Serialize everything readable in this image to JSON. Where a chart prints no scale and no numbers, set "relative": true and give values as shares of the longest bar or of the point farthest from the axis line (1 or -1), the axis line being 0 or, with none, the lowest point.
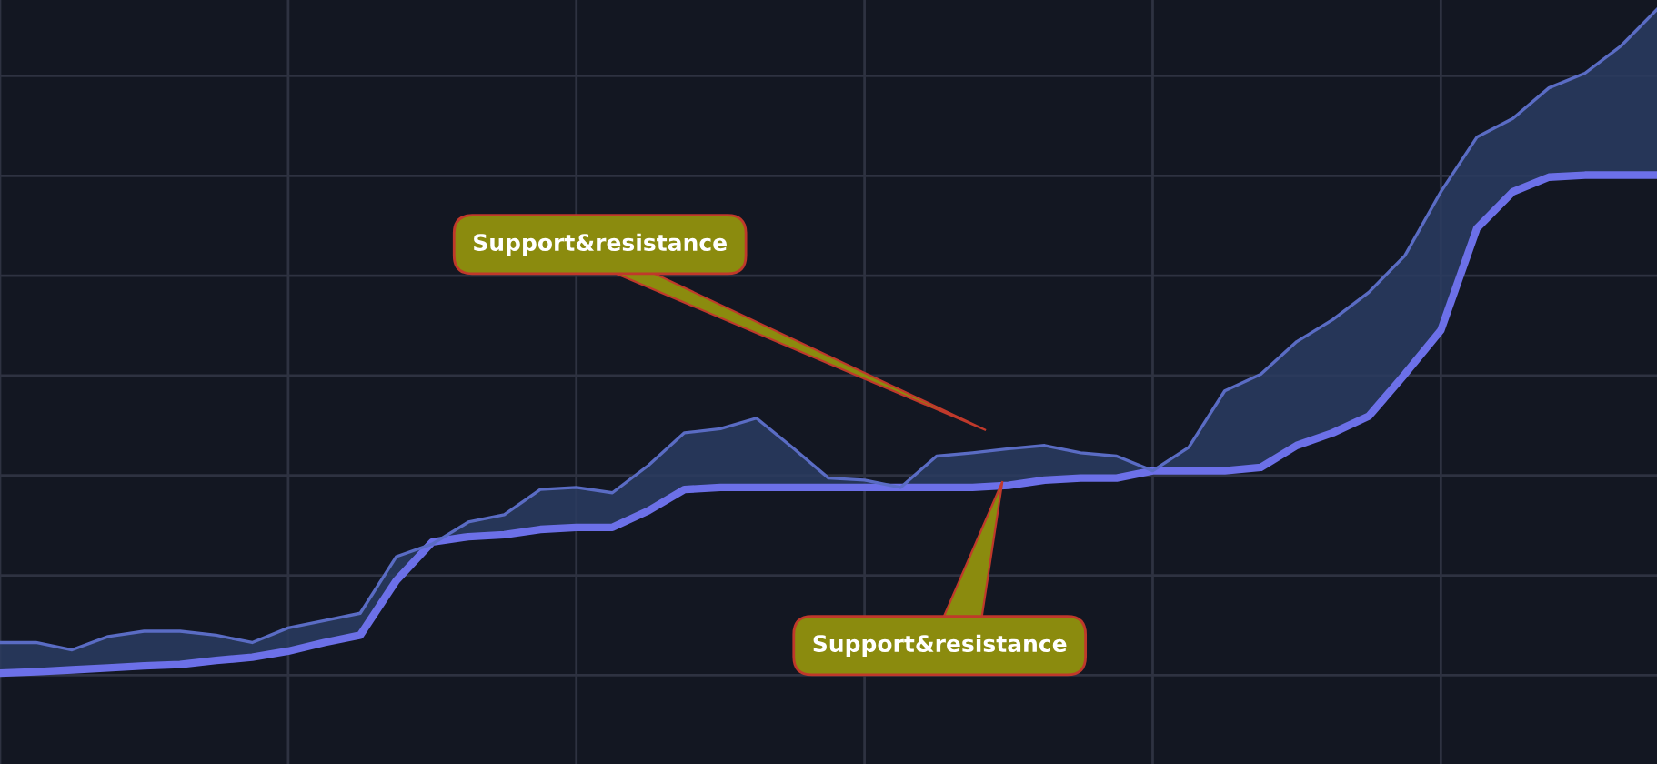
{
  "chart_data": {
    "type": "line",
    "relative": true,
    "grid": true,
    "tick_labels": false,
    "legend": false,
    "categories": [
      null,
      null,
      null,
      null,
      null,
      null,
      null,
      null,
      null,
      null,
      null,
      null,
      null,
      null,
      null,
      null,
      null,
      null,
      null,
      null,
      null,
      null,
      null,
      null,
      null,
      null,
      null,
      null,
      null,
      null,
      null,
      null,
      null,
      null,
      null,
      null,
      null,
      null,
      null,
      null,
      null,
      null,
      null,
      null,
      null,
      null,
      null
    ],
    "series": [
      {
        "color": "#6c70e8",
        "values": [
          0.003,
          0.005,
          0.008,
          0.011,
          0.014,
          0.016,
          0.022,
          0.027,
          0.036,
          0.049,
          0.06,
          0.142,
          0.2,
          0.208,
          0.211,
          0.219,
          0.222,
          0.222,
          0.247,
          0.279,
          0.282,
          0.282,
          0.282,
          0.282,
          0.282,
          0.282,
          0.282,
          0.282,
          0.285,
          0.293,
          0.296,
          0.296,
          0.307,
          0.307,
          0.307,
          0.312,
          0.345,
          0.364,
          0.389,
          0.452,
          0.518,
          0.671,
          0.726,
          0.748,
          0.751,
          0.751,
          0.751
        ]
      },
      {
        "type": "area",
        "color": "#5a6cc4",
        "values": [
          0.049,
          0.049,
          0.038,
          0.058,
          0.066,
          0.066,
          0.06,
          0.049,
          0.071,
          0.082,
          0.093,
          0.178,
          0.197,
          0.23,
          0.241,
          0.279,
          0.282,
          0.274,
          0.315,
          0.364,
          0.37,
          0.386,
          0.342,
          0.296,
          0.293,
          0.282,
          0.329,
          0.334,
          0.34,
          0.345,
          0.334,
          0.329,
          0.307,
          0.342,
          0.427,
          0.452,
          0.501,
          0.534,
          0.575,
          0.63,
          0.726,
          0.808,
          0.836,
          0.882,
          0.904,
          0.945,
          1
        ]
      }
    ],
    "annotations": [
      "Support&resistance",
      "Support&resistance"
    ]
  }
}
